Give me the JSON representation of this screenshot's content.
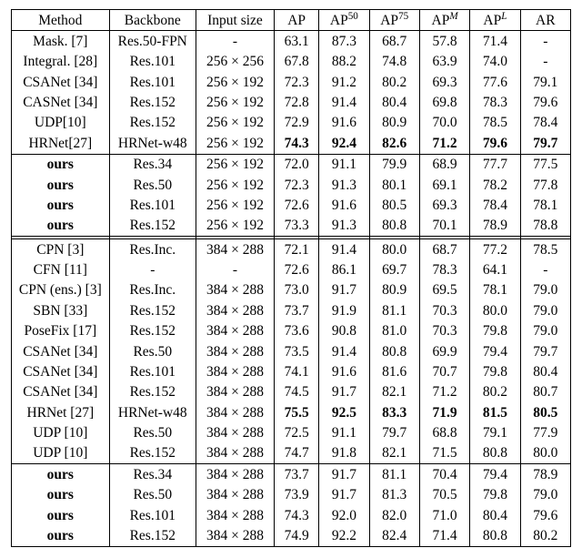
{
  "headers": {
    "method": "Method",
    "backbone": "Backbone",
    "input": "Input size",
    "ap": "AP",
    "ap50_pre": "AP",
    "ap50_sup": "50",
    "ap75_pre": "AP",
    "ap75_sup": "75",
    "apm_pre": "AP",
    "apm_sup": "M",
    "apl_pre": "AP",
    "apl_sup": "L",
    "ar": "AR"
  },
  "style": {
    "font_family": "Times New Roman",
    "font_size_pt": 12,
    "text_color": "#000000",
    "background": "#ffffff",
    "rule_color": "#000000",
    "bold_cells": true
  },
  "groups": [
    {
      "rows": [
        {
          "method": "Mask. [7]",
          "backbone": "Res.50-FPN",
          "input": "-",
          "ap": "63.1",
          "ap50": "87.3",
          "ap75": "68.7",
          "apm": "57.8",
          "apl": "71.4",
          "ar": "-"
        },
        {
          "method": "Integral. [28]",
          "backbone": "Res.101",
          "input": "256 × 256",
          "ap": "67.8",
          "ap50": "88.2",
          "ap75": "74.8",
          "apm": "63.9",
          "apl": "74.0",
          "ar": "-"
        },
        {
          "method": "CSANet [34]",
          "backbone": "Res.101",
          "input": "256 × 192",
          "ap": "72.3",
          "ap50": "91.2",
          "ap75": "80.2",
          "apm": "69.3",
          "apl": "77.6",
          "ar": "79.1"
        },
        {
          "method": "CASNet [34]",
          "backbone": "Res.152",
          "input": "256 × 192",
          "ap": "72.8",
          "ap50": "91.4",
          "ap75": "80.4",
          "apm": "69.8",
          "apl": "78.3",
          "ar": "79.6"
        },
        {
          "method": "UDP[10]",
          "backbone": "Res.152",
          "input": "256 × 192",
          "ap": "72.9",
          "ap50": "91.6",
          "ap75": "80.9",
          "apm": "70.0",
          "apl": "78.5",
          "ar": "78.4"
        },
        {
          "method": "HRNet[27]",
          "backbone": "HRNet-w48",
          "input": "256 × 192",
          "ap": "74.3",
          "ap50": "92.4",
          "ap75": "82.6",
          "apm": "71.2",
          "apl": "79.6",
          "ar": "79.7",
          "bold": [
            "ap",
            "ap50",
            "ap75",
            "apm",
            "apl",
            "ar"
          ]
        }
      ]
    },
    {
      "rows": [
        {
          "method": "ours",
          "method_bold": true,
          "backbone": "Res.34",
          "input": "256 × 192",
          "ap": "72.0",
          "ap50": "91.1",
          "ap75": "79.9",
          "apm": "68.9",
          "apl": "77.7",
          "ar": "77.5"
        },
        {
          "method": "ours",
          "method_bold": true,
          "backbone": "Res.50",
          "input": "256 × 192",
          "ap": "72.3",
          "ap50": "91.3",
          "ap75": "80.1",
          "apm": "69.1",
          "apl": "78.2",
          "ar": "77.8"
        },
        {
          "method": "ours",
          "method_bold": true,
          "backbone": "Res.101",
          "input": "256 × 192",
          "ap": "72.6",
          "ap50": "91.6",
          "ap75": "80.5",
          "apm": "69.3",
          "apl": "78.4",
          "ar": "78.1"
        },
        {
          "method": "ours",
          "method_bold": true,
          "backbone": "Res.152",
          "input": "256 × 192",
          "ap": "73.3",
          "ap50": "91.3",
          "ap75": "80.8",
          "apm": "70.1",
          "apl": "78.9",
          "ar": "78.8"
        }
      ]
    },
    {
      "double_rule": true,
      "rows": [
        {
          "method": "CPN [3]",
          "backbone": "Res.Inc.",
          "input": "384 × 288",
          "ap": "72.1",
          "ap50": "91.4",
          "ap75": "80.0",
          "apm": "68.7",
          "apl": "77.2",
          "ar": "78.5"
        },
        {
          "method": "CFN [11]",
          "backbone": "-",
          "input": "-",
          "ap": "72.6",
          "ap50": "86.1",
          "ap75": "69.7",
          "apm": "78.3",
          "apl": "64.1",
          "ar": "-"
        },
        {
          "method": "CPN (ens.) [3]",
          "backbone": "Res.Inc.",
          "input": "384 × 288",
          "ap": "73.0",
          "ap50": "91.7",
          "ap75": "80.9",
          "apm": "69.5",
          "apl": "78.1",
          "ar": "79.0"
        },
        {
          "method": "SBN [33]",
          "backbone": "Res.152",
          "input": "384 × 288",
          "ap": "73.7",
          "ap50": "91.9",
          "ap75": "81.1",
          "apm": "70.3",
          "apl": "80.0",
          "ar": "79.0"
        },
        {
          "method": "PoseFix [17]",
          "backbone": "Res.152",
          "input": "384 × 288",
          "ap": "73.6",
          "ap50": "90.8",
          "ap75": "81.0",
          "apm": "70.3",
          "apl": "79.8",
          "ar": "79.0"
        },
        {
          "method": "CSANet [34]",
          "backbone": "Res.50",
          "input": "384 × 288",
          "ap": "73.5",
          "ap50": "91.4",
          "ap75": "80.8",
          "apm": "69.9",
          "apl": "79.4",
          "ar": "79.7"
        },
        {
          "method": "CSANet [34]",
          "backbone": "Res.101",
          "input": "384 × 288",
          "ap": "74.1",
          "ap50": "91.6",
          "ap75": "81.6",
          "apm": "70.7",
          "apl": "79.8",
          "ar": "80.4"
        },
        {
          "method": "CSANet [34]",
          "backbone": "Res.152",
          "input": "384 × 288",
          "ap": "74.5",
          "ap50": "91.7",
          "ap75": "82.1",
          "apm": "71.2",
          "apl": "80.2",
          "ar": "80.7"
        },
        {
          "method": "HRNet [27]",
          "backbone": "HRNet-w48",
          "input": "384 × 288",
          "ap": "75.5",
          "ap50": "92.5",
          "ap75": "83.3",
          "apm": "71.9",
          "apl": "81.5",
          "ar": "80.5",
          "bold": [
            "ap",
            "ap50",
            "ap75",
            "apm",
            "apl",
            "ar"
          ]
        },
        {
          "method": "UDP [10]",
          "backbone": "Res.50",
          "input": "384 × 288",
          "ap": "72.5",
          "ap50": "91.1",
          "ap75": "79.7",
          "apm": "68.8",
          "apl": "79.1",
          "ar": "77.9"
        },
        {
          "method": "UDP [10]",
          "backbone": "Res.152",
          "input": "384 × 288",
          "ap": "74.7",
          "ap50": "91.8",
          "ap75": "82.1",
          "apm": "71.5",
          "apl": "80.8",
          "ar": "80.0"
        }
      ]
    },
    {
      "rows": [
        {
          "method": "ours",
          "method_bold": true,
          "backbone": "Res.34",
          "input": "384 × 288",
          "ap": "73.7",
          "ap50": "91.7",
          "ap75": "81.1",
          "apm": "70.4",
          "apl": "79.4",
          "ar": "78.9"
        },
        {
          "method": "ours",
          "method_bold": true,
          "backbone": "Res.50",
          "input": "384 × 288",
          "ap": "73.9",
          "ap50": "91.7",
          "ap75": "81.3",
          "apm": "70.5",
          "apl": "79.8",
          "ar": "79.0"
        },
        {
          "method": "ours",
          "method_bold": true,
          "backbone": "Res.101",
          "input": "384 × 288",
          "ap": "74.3",
          "ap50": "92.0",
          "ap75": "82.0",
          "apm": "71.0",
          "apl": "80.4",
          "ar": "79.6"
        },
        {
          "method": "ours",
          "method_bold": true,
          "backbone": "Res.152",
          "input": "384 × 288",
          "ap": "74.9",
          "ap50": "92.2",
          "ap75": "82.4",
          "apm": "71.4",
          "apl": "80.8",
          "ar": "80.2"
        }
      ]
    }
  ]
}
